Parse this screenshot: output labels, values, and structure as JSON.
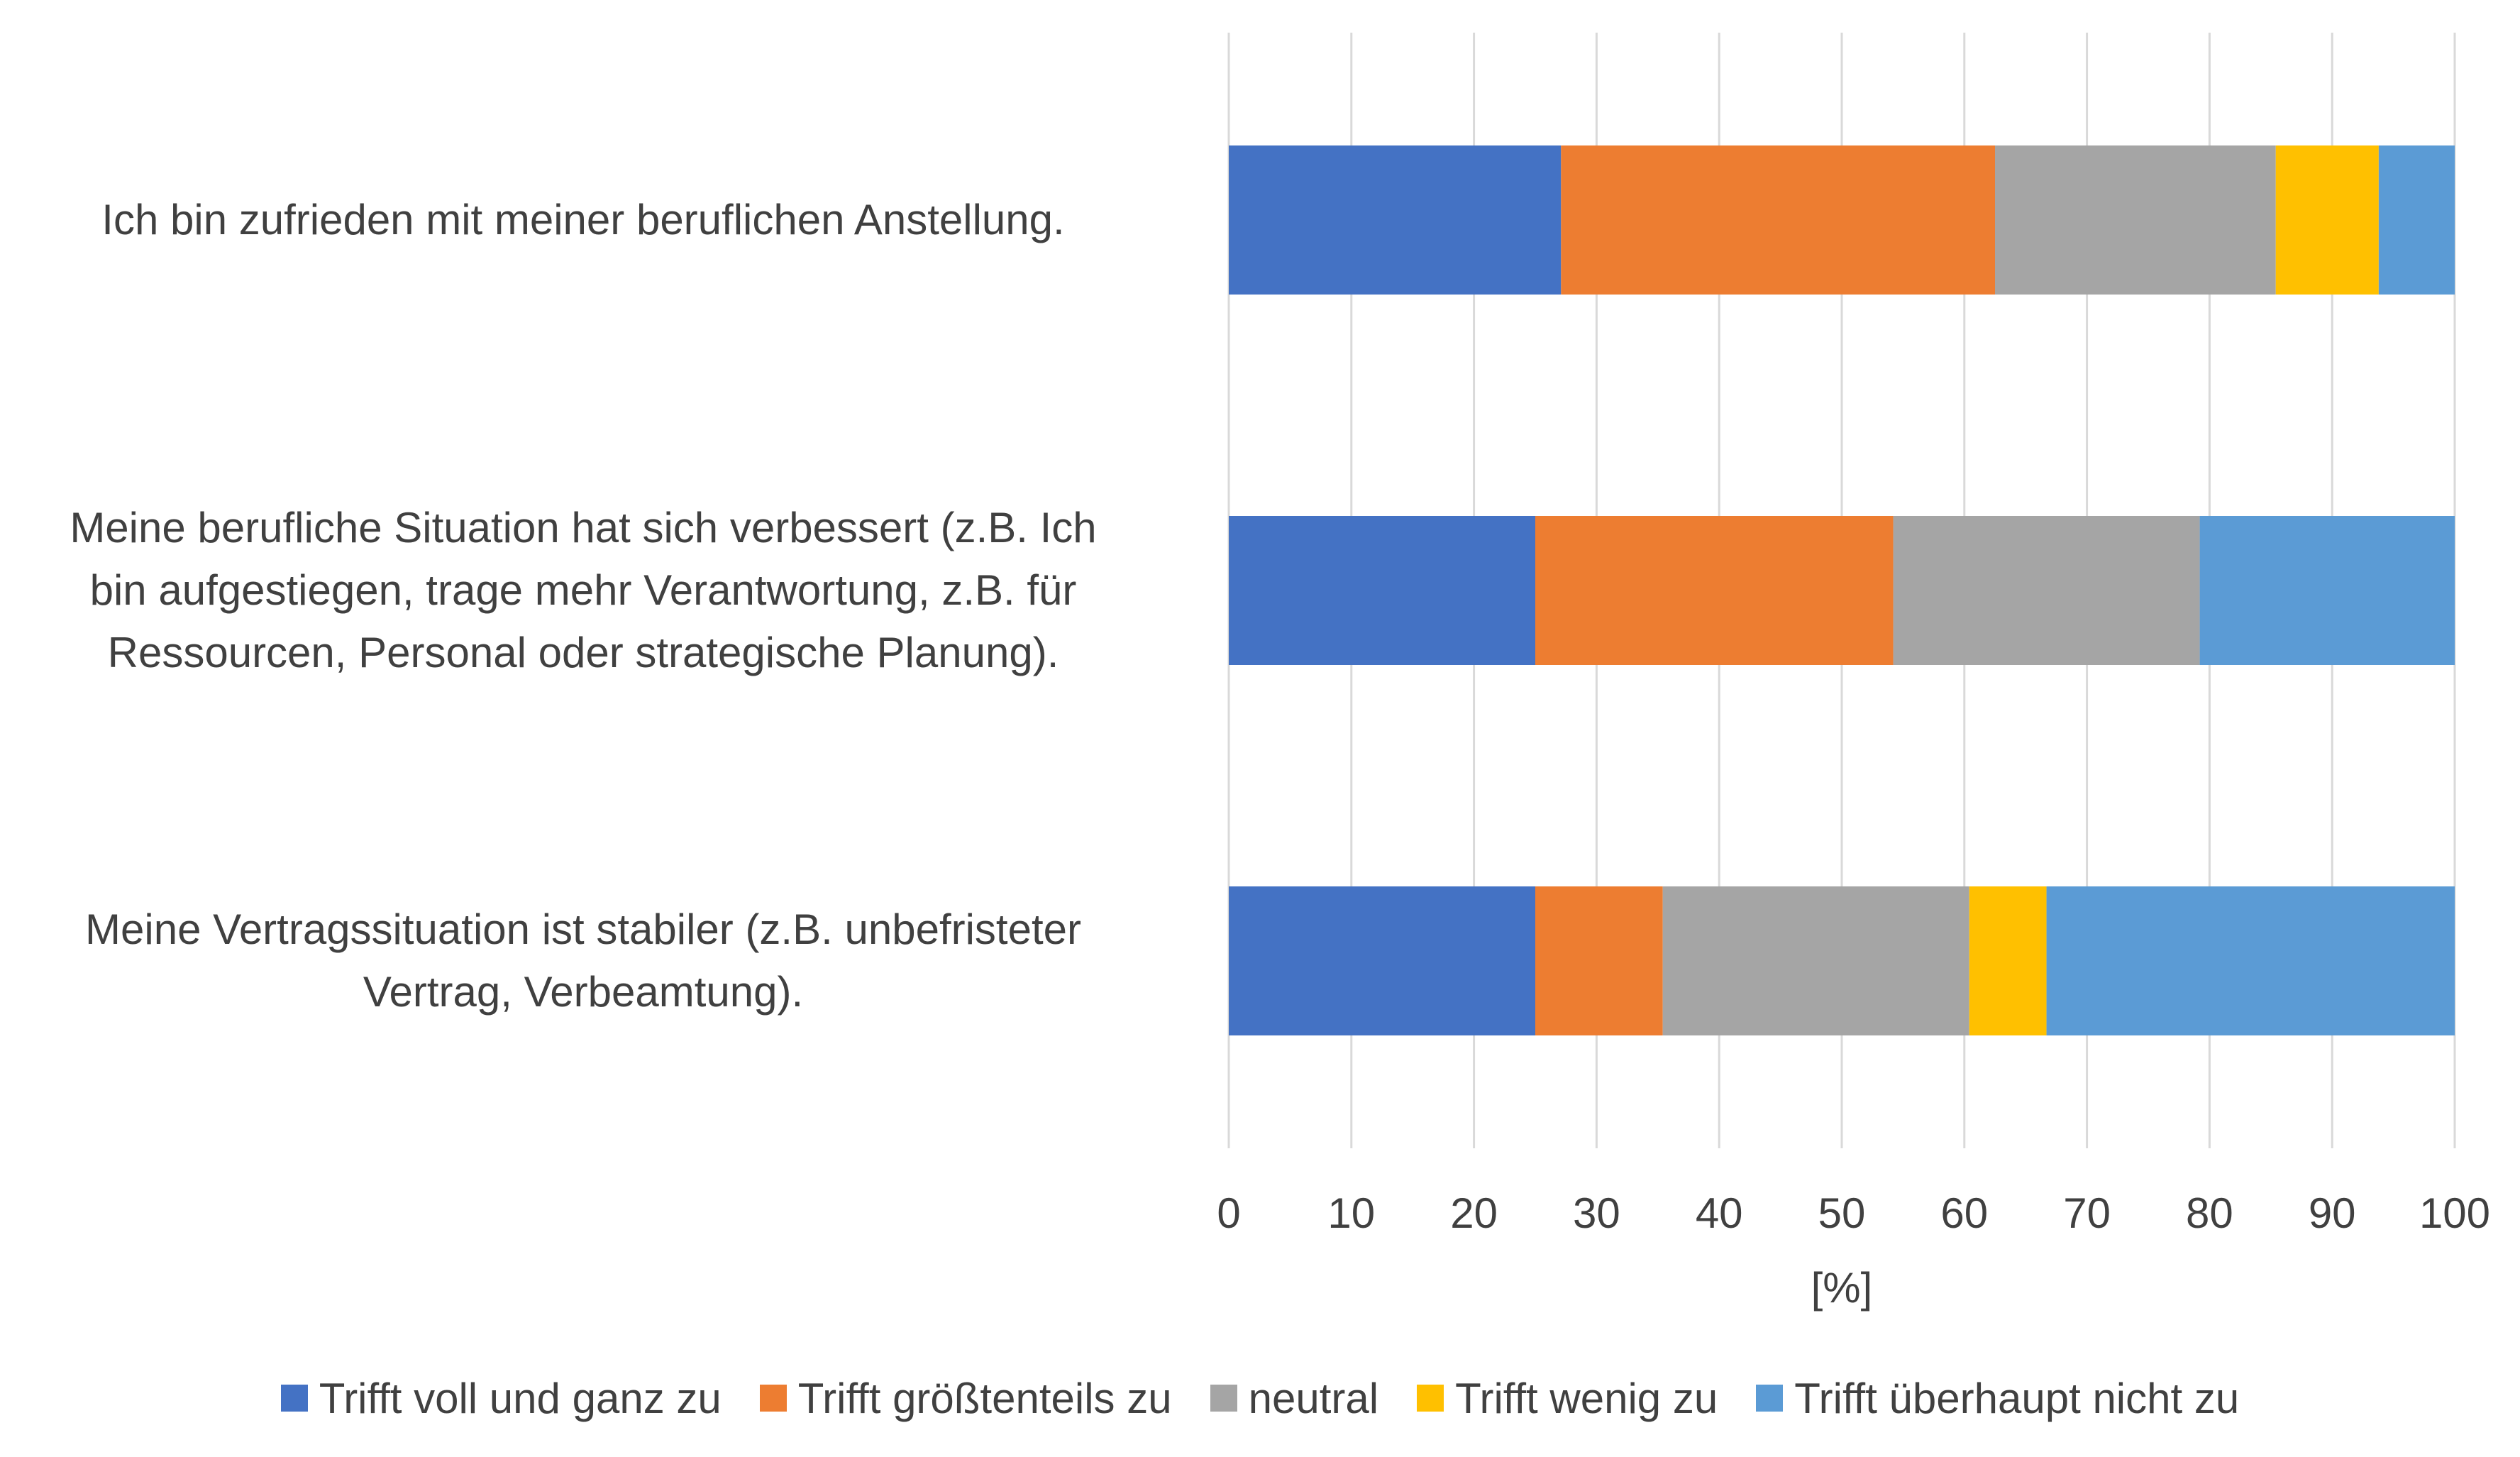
{
  "chart_data": {
    "type": "bar",
    "orientation": "horizontal",
    "stacked": true,
    "categories": [
      "Ich bin zufrieden mit meiner beruflichen Anstellung.",
      "Meine berufliche Situation hat sich verbessert (z.B. Ich bin aufgestiegen, trage mehr Verantwortung, z.B. für Ressourcen, Personal oder strategische Planung).",
      "Meine Vertragssituation ist stabiler (z.B. unbefristeter Vertrag, Verbeamtung)."
    ],
    "category_lines": [
      [
        "Ich bin zufrieden mit meiner beruflichen Anstellung."
      ],
      [
        "Meine berufliche Situation hat sich verbessert (z.B. Ich",
        "bin aufgestiegen, trage mehr Verantwortung, z.B. für",
        "Ressourcen, Personal oder strategische Planung)."
      ],
      [
        "Meine Vertragssituation ist stabiler (z.B. unbefristeter",
        "Vertrag, Verbeamtung)."
      ]
    ],
    "series": [
      {
        "name": "Trifft voll und ganz zu",
        "color": "#4472C4",
        "values": [
          27.1,
          25.0,
          25.0
        ]
      },
      {
        "name": "Trifft größtenteils zu",
        "color": "#ED7D31",
        "values": [
          35.4,
          29.2,
          10.4
        ]
      },
      {
        "name": "neutral",
        "color": "#A5A5A5",
        "values": [
          22.9,
          25.0,
          25.0
        ]
      },
      {
        "name": "Trifft wenig zu",
        "color": "#FFC000",
        "values": [
          8.4,
          0.0,
          6.3
        ]
      },
      {
        "name": "Trifft überhaupt nicht zu",
        "color": "#5B9BD5",
        "values": [
          6.2,
          20.8,
          33.3
        ]
      }
    ],
    "xlabel": "[%]",
    "xlim": [
      0,
      100
    ],
    "xticks": [
      "0",
      "10",
      "20",
      "30",
      "40",
      "50",
      "60",
      "70",
      "80",
      "90",
      "100"
    ],
    "grid": true,
    "legend_position": "bottom"
  }
}
